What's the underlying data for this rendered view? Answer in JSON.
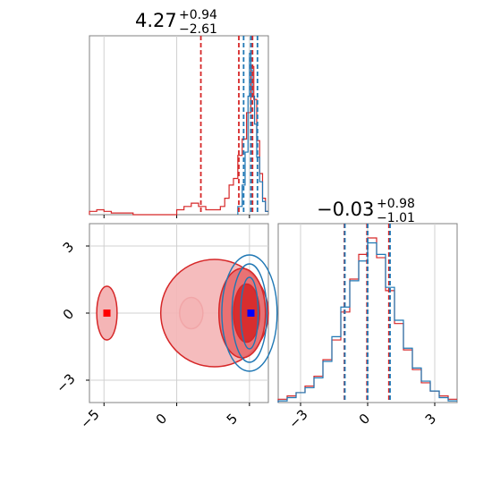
{
  "colors": {
    "series_a": "#d62728",
    "series_b": "#1f77b4",
    "grid": "#d0d0d0",
    "axis": "#808080",
    "marker_a": "#ff0000",
    "marker_b": "#0000ff"
  },
  "chart_data": [
    {
      "id": "hist-param-1",
      "type": "histogram",
      "title": {
        "value": "4.27",
        "upper": "+0.94",
        "lower": "−2.61"
      },
      "xlim": [
        -6,
        6.3
      ],
      "grid_x": [
        -5,
        0,
        5
      ],
      "quantile_lines": {
        "series_a": [
          1.66,
          4.27,
          5.21
        ],
        "series_b": [
          4.6,
          5.1,
          5.55
        ]
      },
      "series": [
        {
          "key": "series_a",
          "bins": [
            [
              -6,
              0.02
            ],
            [
              -5.5,
              0.03
            ],
            [
              -5,
              0.02
            ],
            [
              -4.5,
              0.01
            ],
            [
              -4,
              0.01
            ],
            [
              -3,
              0.0
            ],
            [
              0,
              0.03
            ],
            [
              0.5,
              0.05
            ],
            [
              1,
              0.07
            ],
            [
              1.5,
              0.05
            ],
            [
              2,
              0.03
            ],
            [
              3,
              0.05
            ],
            [
              3.3,
              0.1
            ],
            [
              3.6,
              0.18
            ],
            [
              3.9,
              0.22
            ],
            [
              4.2,
              0.36
            ],
            [
              4.5,
              0.46
            ],
            [
              4.8,
              0.62
            ],
            [
              5.1,
              0.9
            ],
            [
              5.3,
              0.7
            ],
            [
              5.5,
              0.45
            ],
            [
              5.7,
              0.25
            ],
            [
              5.9,
              0.1
            ],
            [
              6.1,
              0.02
            ]
          ]
        },
        {
          "key": "series_b",
          "bins": [
            [
              4.2,
              0.05
            ],
            [
              4.5,
              0.18
            ],
            [
              4.7,
              0.38
            ],
            [
              4.9,
              0.72
            ],
            [
              5.0,
              0.98
            ],
            [
              5.1,
              0.88
            ],
            [
              5.2,
              0.72
            ],
            [
              5.35,
              0.55
            ],
            [
              5.5,
              0.35
            ],
            [
              5.7,
              0.2
            ],
            [
              5.9,
              0.08
            ],
            [
              6.1,
              0.02
            ]
          ]
        }
      ]
    },
    {
      "id": "joint-param-1-2",
      "type": "contour",
      "xlim": [
        -6,
        6.3
      ],
      "ylim": [
        -4,
        4
      ],
      "xticks": [
        "−5",
        "0",
        "5"
      ],
      "xtick_values": [
        -5,
        0,
        5
      ],
      "yticks": [
        "−3",
        "0",
        "3"
      ],
      "ytick_values": [
        -3,
        0,
        3
      ],
      "series": [
        {
          "key": "series_a",
          "levels": [
            {
              "cx": 2.6,
              "cy": 0.0,
              "rx": 3.7,
              "ry": 2.4
            },
            {
              "cx": 4.5,
              "cy": 0.0,
              "rx": 1.6,
              "ry": 2.0
            },
            {
              "cx": 4.8,
              "cy": 0.0,
              "rx": 0.9,
              "ry": 1.3
            }
          ],
          "islands": [
            {
              "cx": -4.8,
              "cy": 0.0,
              "rx": 0.7,
              "ry": 1.2
            },
            {
              "cx": 1.0,
              "cy": 0.0,
              "rx": 0.8,
              "ry": 0.7
            }
          ],
          "marker": [
            -4.8,
            0.0
          ]
        },
        {
          "key": "series_b",
          "levels": [
            {
              "cx": 5.0,
              "cy": 0.0,
              "rx": 1.9,
              "ry": 2.6
            },
            {
              "cx": 5.0,
              "cy": 0.0,
              "rx": 1.2,
              "ry": 2.2
            },
            {
              "cx": 5.0,
              "cy": 0.0,
              "rx": 0.6,
              "ry": 1.6
            }
          ],
          "marker": [
            5.1,
            0.0
          ]
        }
      ]
    },
    {
      "id": "hist-param-2",
      "type": "histogram",
      "title": {
        "value": "−0.03",
        "upper": "+0.98",
        "lower": "−1.01"
      },
      "xlim": [
        -4,
        4
      ],
      "grid_x": [
        -3,
        0,
        3
      ],
      "xticks": [
        "−3",
        "0",
        "3"
      ],
      "xtick_values": [
        -3,
        0,
        3
      ],
      "quantile_lines": {
        "series_a": [
          -1.04,
          -0.03,
          0.95
        ],
        "series_b": [
          -1.02,
          0.0,
          1.0
        ]
      },
      "series": [
        {
          "key": "series_a",
          "bins": [
            [
              -4,
              0.02
            ],
            [
              -3.6,
              0.04
            ],
            [
              -3.2,
              0.06
            ],
            [
              -2.8,
              0.1
            ],
            [
              -2.4,
              0.16
            ],
            [
              -2.0,
              0.26
            ],
            [
              -1.6,
              0.38
            ],
            [
              -1.2,
              0.55
            ],
            [
              -0.8,
              0.75
            ],
            [
              -0.4,
              0.9
            ],
            [
              0.0,
              1.0
            ],
            [
              0.4,
              0.88
            ],
            [
              0.8,
              0.68
            ],
            [
              1.2,
              0.48
            ],
            [
              1.6,
              0.32
            ],
            [
              2.0,
              0.2
            ],
            [
              2.4,
              0.12
            ],
            [
              2.8,
              0.07
            ],
            [
              3.2,
              0.04
            ],
            [
              3.6,
              0.02
            ]
          ]
        },
        {
          "key": "series_b",
          "bins": [
            [
              -4,
              0.01
            ],
            [
              -3.6,
              0.03
            ],
            [
              -3.2,
              0.06
            ],
            [
              -2.8,
              0.09
            ],
            [
              -2.4,
              0.15
            ],
            [
              -2.0,
              0.25
            ],
            [
              -1.6,
              0.4
            ],
            [
              -1.2,
              0.58
            ],
            [
              -0.8,
              0.74
            ],
            [
              -0.4,
              0.86
            ],
            [
              0.0,
              0.97
            ],
            [
              0.4,
              0.9
            ],
            [
              0.8,
              0.7
            ],
            [
              1.2,
              0.5
            ],
            [
              1.6,
              0.33
            ],
            [
              2.0,
              0.21
            ],
            [
              2.4,
              0.13
            ],
            [
              2.8,
              0.07
            ],
            [
              3.2,
              0.03
            ],
            [
              3.6,
              0.01
            ]
          ]
        }
      ]
    }
  ]
}
